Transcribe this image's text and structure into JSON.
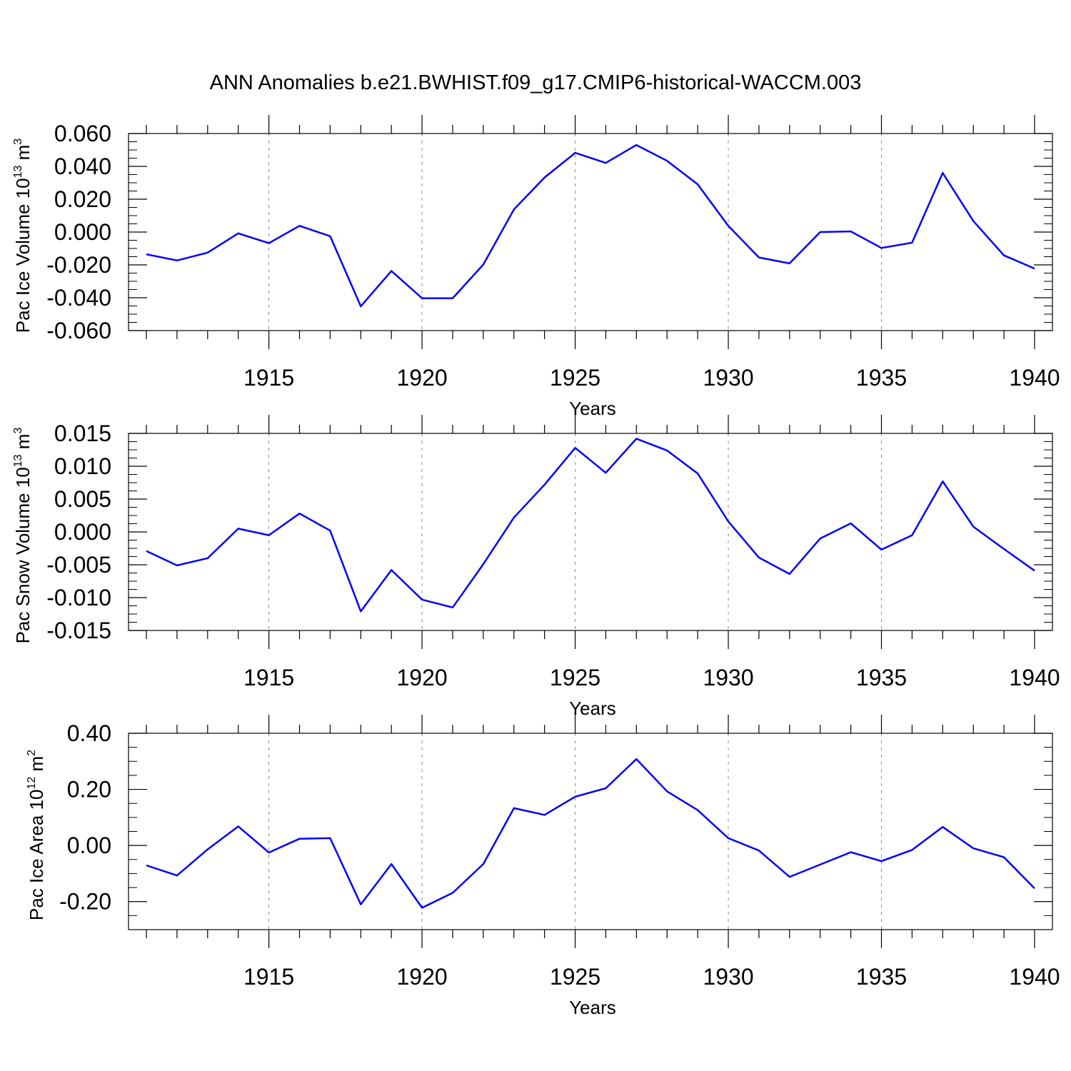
{
  "title": "ANN Anomalies b.e21.BWHIST.f09_g17.CMIP6-historical-WACCM.003",
  "colors": {
    "line": "#0000ff",
    "axis": "#000000",
    "grid": "#888888"
  },
  "chart_data": [
    {
      "type": "line",
      "ylabel": {
        "text": "Pac Ice Volume 10",
        "exp": "13",
        "unit": " m",
        "unit_exp": "3"
      },
      "xlabel": "Years",
      "xlim": [
        1911,
        1940
      ],
      "ylim": [
        -0.06,
        0.06
      ],
      "yticks": [
        "0.060",
        "0.040",
        "0.020",
        "0.000",
        "-0.020",
        "-0.040",
        "-0.060"
      ],
      "xticks": [
        "1915",
        "1920",
        "1925",
        "1930",
        "1935",
        "1940"
      ],
      "grid": "x-dashed",
      "x": [
        1911,
        1912,
        1913,
        1914,
        1915,
        1916,
        1917,
        1918,
        1919,
        1920,
        1921,
        1922,
        1923,
        1924,
        1925,
        1926,
        1927,
        1928,
        1929,
        1930,
        1931,
        1932,
        1933,
        1934,
        1935,
        1936,
        1937,
        1938,
        1939,
        1940
      ],
      "values": [
        -0.0135,
        -0.0173,
        -0.0125,
        -0.0008,
        -0.0068,
        0.0038,
        -0.0025,
        -0.0452,
        -0.0237,
        -0.0403,
        -0.0403,
        -0.0198,
        0.0138,
        0.0332,
        0.0482,
        0.0421,
        0.053,
        0.0434,
        0.0291,
        0.0038,
        -0.0155,
        -0.0191,
        0.0,
        0.0004,
        -0.0097,
        -0.0065,
        0.036,
        0.0067,
        -0.0142,
        -0.0222
      ]
    },
    {
      "type": "line",
      "ylabel": {
        "text": "Pac Snow Volume 10",
        "exp": "13",
        "unit": " m",
        "unit_exp": "3"
      },
      "xlabel": "Years",
      "xlim": [
        1911,
        1940
      ],
      "ylim": [
        -0.015,
        0.015
      ],
      "yticks": [
        "0.015",
        "0.010",
        "0.005",
        "0.000",
        "-0.005",
        "-0.010",
        "-0.015"
      ],
      "xticks": [
        "1915",
        "1920",
        "1925",
        "1930",
        "1935",
        "1940"
      ],
      "grid": "x-dashed",
      "x": [
        1911,
        1912,
        1913,
        1914,
        1915,
        1916,
        1917,
        1918,
        1919,
        1920,
        1921,
        1922,
        1923,
        1924,
        1925,
        1926,
        1927,
        1928,
        1929,
        1930,
        1931,
        1932,
        1933,
        1934,
        1935,
        1936,
        1937,
        1938,
        1939,
        1940
      ],
      "values": [
        -0.0029,
        -0.0051,
        -0.004,
        0.0005,
        -0.0005,
        0.0028,
        0.0002,
        -0.0121,
        -0.0058,
        -0.0103,
        -0.0115,
        -0.0049,
        0.0022,
        0.0072,
        0.0128,
        0.009,
        0.0142,
        0.0124,
        0.0089,
        0.0016,
        -0.0039,
        -0.0064,
        -0.001,
        0.0013,
        -0.0027,
        -0.0005,
        0.0077,
        0.0008,
        -0.0026,
        -0.0059
      ]
    },
    {
      "type": "line",
      "ylabel": {
        "text": "Pac Ice Area 10",
        "exp": "12",
        "unit": " m",
        "unit_exp": "2"
      },
      "xlabel": "Years",
      "xlim": [
        1911,
        1940
      ],
      "ylim": [
        -0.3,
        0.4
      ],
      "yticks": [
        "0.40",
        "0.20",
        "0.00",
        "-0.20"
      ],
      "xticks": [
        "1915",
        "1920",
        "1925",
        "1930",
        "1935",
        "1940"
      ],
      "grid": "x-dashed",
      "x": [
        1911,
        1912,
        1913,
        1914,
        1915,
        1916,
        1917,
        1918,
        1919,
        1920,
        1921,
        1922,
        1923,
        1924,
        1925,
        1926,
        1927,
        1928,
        1929,
        1930,
        1931,
        1932,
        1933,
        1934,
        1935,
        1936,
        1937,
        1938,
        1939,
        1940
      ],
      "values": [
        -0.071,
        -0.107,
        -0.014,
        0.068,
        -0.025,
        0.024,
        0.026,
        -0.21,
        -0.066,
        -0.222,
        -0.169,
        -0.066,
        0.133,
        0.109,
        0.174,
        0.204,
        0.308,
        0.193,
        0.126,
        0.026,
        -0.018,
        -0.112,
        -0.068,
        -0.024,
        -0.056,
        -0.016,
        0.066,
        -0.01,
        -0.042,
        -0.153
      ]
    }
  ]
}
